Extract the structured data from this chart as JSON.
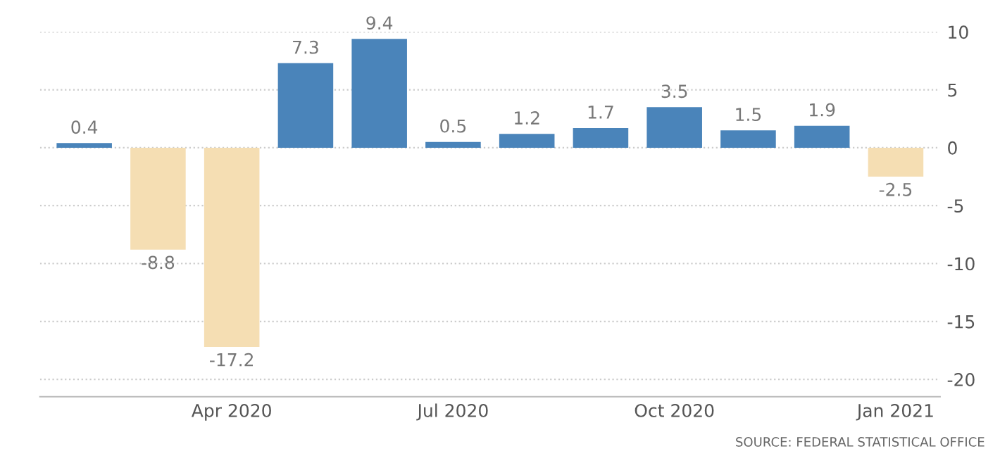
{
  "chart_data": {
    "type": "bar",
    "categories": [
      null,
      null,
      "Apr 2020",
      null,
      null,
      "Jul 2020",
      null,
      null,
      "Oct 2020",
      null,
      null,
      "Jan 2021"
    ],
    "values": [
      0.4,
      -8.8,
      -17.2,
      7.3,
      9.4,
      0.5,
      1.2,
      1.7,
      3.5,
      1.5,
      1.9,
      -2.5
    ],
    "colors": [
      "#4a84ba",
      "#f5deb3",
      "#f5deb3",
      "#4a84ba",
      "#4a84ba",
      "#4a84ba",
      "#4a84ba",
      "#4a84ba",
      "#4a84ba",
      "#4a84ba",
      "#4a84ba",
      "#f5deb3"
    ],
    "ylim": [
      -21.5,
      10
    ],
    "yticks": [
      -20,
      -15,
      -10,
      -5,
      0,
      5,
      10
    ],
    "grid": "y",
    "data_labels": true,
    "legend": false,
    "annotations": [
      "SOURCE: FEDERAL STATISTICAL OFFICE"
    ]
  }
}
